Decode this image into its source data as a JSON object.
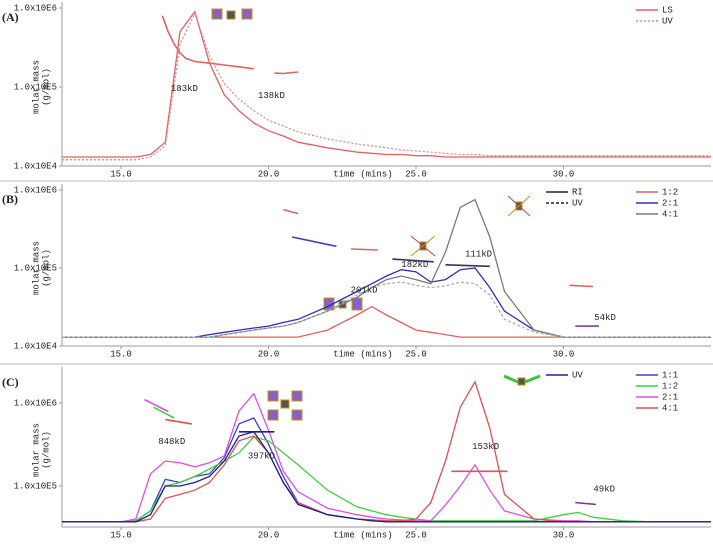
{
  "chart_data": [
    {
      "type": "line",
      "panel_label": "(A)",
      "ylabel": [
        "molar mass",
        "(g/mol)"
      ],
      "xlabel": "time (mins)",
      "log_y": true,
      "xlim": [
        13,
        35
      ],
      "ylim": [
        10000,
        1000000
      ],
      "xticks": [
        {
          "value": 15,
          "label": "15.0"
        },
        {
          "value": 20,
          "label": "20.0"
        },
        {
          "value": 25,
          "label": "25.0"
        },
        {
          "value": 30,
          "label": "30.0"
        }
      ],
      "yticks": [
        {
          "value": 10000,
          "label": "1.0x10E4"
        },
        {
          "value": 100000,
          "label": "1.0x10E5"
        },
        {
          "value": 1000000,
          "label": "1.0x10E6"
        }
      ],
      "legend": "top-right",
      "x": [
        13,
        14,
        15,
        15.5,
        16,
        16.5,
        17,
        17.5,
        18,
        18.5,
        19,
        19.5,
        20,
        20.5,
        21,
        22,
        23,
        23.5,
        24,
        24.5,
        25,
        25.5,
        26,
        26.5,
        27,
        27.5,
        28,
        29,
        30,
        30.5,
        31,
        32,
        33,
        35
      ],
      "series": [
        {
          "name": "LS",
          "color": "#e06262",
          "values": [
            13000,
            13000,
            13000,
            13000,
            14000,
            20000,
            500000,
            900000,
            200000,
            80000,
            50000,
            35000,
            28000,
            24000,
            20000,
            17000,
            15000,
            14500,
            14000,
            14000,
            13500,
            13500,
            13000,
            13000,
            13000,
            13000,
            13000,
            13000,
            13000,
            13000,
            13000,
            13000,
            13000,
            13000
          ]
        },
        {
          "name": "UV",
          "color": "#e88a8a",
          "dash": "2,2",
          "values": [
            12000,
            12000,
            12000,
            12000,
            13000,
            18000,
            350000,
            850000,
            250000,
            110000,
            70000,
            50000,
            38000,
            32000,
            27000,
            22000,
            19000,
            18000,
            17000,
            16000,
            15500,
            15000,
            14500,
            14000,
            14000,
            13500,
            13500,
            13500,
            13500,
            13500,
            13500,
            13500,
            13500,
            13500
          ]
        }
      ],
      "mass_segments": [
        {
          "color": "#e06262",
          "x": [
            16.4,
            16.6,
            16.8,
            17,
            17.2,
            17.5,
            18,
            18.5,
            19,
            19.5
          ],
          "values": [
            800000,
            500000,
            350000,
            270000,
            230000,
            210000,
            200000,
            190000,
            180000,
            170000
          ]
        },
        {
          "color": "#e06262",
          "x": [
            20.2,
            20.5,
            21
          ],
          "values": [
            150000,
            148000,
            155000
          ]
        }
      ],
      "annotations": [
        {
          "text": "183kD",
          "x": 17.15,
          "y": 95000
        },
        {
          "text": "138kD",
          "x": 20.1,
          "y": 78000
        }
      ]
    },
    {
      "type": "line",
      "panel_label": "(B)",
      "ylabel": [
        "molar mass",
        "(g/mol)"
      ],
      "xlabel": "time (mins)",
      "log_y": true,
      "xlim": [
        13,
        35
      ],
      "ylim": [
        10000,
        1000000
      ],
      "xticks": [
        {
          "value": 15,
          "label": "15.0"
        },
        {
          "value": 20,
          "label": "20.0"
        },
        {
          "value": 25,
          "label": "25.0"
        },
        {
          "value": 30,
          "label": "30.0"
        }
      ],
      "yticks": [
        {
          "value": 10000,
          "label": "1.0x10E4"
        },
        {
          "value": 100000,
          "label": "1.0x10E5"
        },
        {
          "value": 1000000,
          "label": "1.0x10E6"
        }
      ],
      "legend": "top-right",
      "detector_legend": [
        {
          "name": "RI",
          "color": "#222222"
        },
        {
          "name": "UV",
          "color": "#222222",
          "dash": "3,2"
        }
      ],
      "x": [
        13,
        14,
        15,
        15.5,
        16,
        16.5,
        17,
        17.5,
        18,
        18.5,
        19,
        19.5,
        20,
        20.5,
        21,
        22,
        23,
        23.5,
        24,
        24.5,
        25,
        25.5,
        26,
        26.5,
        27,
        27.5,
        28,
        29,
        30,
        30.5,
        31,
        32,
        33,
        35
      ],
      "series": [
        {
          "name": "1:2",
          "color": "#e06262",
          "values": [
            13000,
            13000,
            13000,
            13000,
            13000,
            13000,
            13000,
            13000,
            13000,
            13000,
            13000,
            13000,
            13000,
            13000,
            13000,
            16000,
            25000,
            32000,
            25000,
            20000,
            16000,
            15000,
            14000,
            13000,
            13000,
            13000,
            13000,
            13000,
            13000,
            13000,
            13000,
            13000,
            13000,
            13000
          ]
        },
        {
          "name": "2:1",
          "color": "#3030c0",
          "values": [
            13000,
            13000,
            13000,
            13000,
            13000,
            13000,
            13000,
            13000,
            14000,
            15000,
            16000,
            17000,
            18000,
            20000,
            22000,
            32000,
            50000,
            63000,
            79000,
            95000,
            89000,
            66000,
            71000,
            95000,
            100000,
            56000,
            28000,
            16000,
            13000,
            13000,
            13000,
            13000,
            13000,
            13000
          ]
        },
        {
          "name": "4:1",
          "color": "#7a7a7a",
          "values": [
            13000,
            13000,
            13000,
            13000,
            13000,
            13000,
            13000,
            13000,
            13000,
            14000,
            15000,
            16000,
            17000,
            18000,
            20000,
            28000,
            42000,
            56000,
            71000,
            79000,
            71000,
            63000,
            160000,
            600000,
            750000,
            250000,
            50000,
            16000,
            13000,
            13000,
            13000,
            13000,
            13000,
            13000
          ]
        },
        {
          "color": "#b0b0b0",
          "dash": "3,2",
          "values": [
            13000,
            13000,
            13000,
            13000,
            13000,
            13000,
            13000,
            13000,
            13000,
            14000,
            15000,
            16000,
            17000,
            18000,
            20000,
            28000,
            45000,
            56000,
            63000,
            66000,
            60000,
            56000,
            59000,
            66000,
            63000,
            45000,
            22000,
            15000,
            13000,
            13000,
            13000,
            13000,
            13000,
            13000
          ]
        }
      ],
      "mass_segments": [
        {
          "color": "#e06262",
          "x": [
            20.5,
            21
          ],
          "values": [
            560000,
            500000
          ]
        },
        {
          "color": "#4040b0",
          "x": [
            20.8,
            22.3
          ],
          "values": [
            250000,
            190000
          ]
        },
        {
          "color": "#e06262",
          "x": [
            22.8,
            23.7
          ],
          "values": [
            175000,
            170000
          ]
        },
        {
          "color": "#333366",
          "x": [
            24.2,
            25.6
          ],
          "values": [
            130000,
            120000
          ]
        },
        {
          "color": "#333366",
          "x": [
            26,
            27.5
          ],
          "values": [
            110000,
            105000
          ]
        },
        {
          "color": "#e06262",
          "x": [
            30.2,
            31
          ],
          "values": [
            60000,
            58000
          ]
        },
        {
          "color": "#8040a0",
          "x": [
            30.4,
            31.2
          ],
          "values": [
            18000,
            18000
          ]
        }
      ],
      "annotations": [
        {
          "text": "201kD",
          "x": 23.24,
          "y": 52000
        },
        {
          "text": "182kD",
          "x": 24.96,
          "y": 110000
        },
        {
          "text": "111kD",
          "x": 27.12,
          "y": 150000
        },
        {
          "text": "54kD",
          "x": 31.41,
          "y": 23000
        }
      ]
    },
    {
      "type": "line",
      "panel_label": "(C)",
      "ylabel": [
        "molar mass",
        "(g/mol)"
      ],
      "xlabel": "time (mins)",
      "log_y": true,
      "xlim": [
        13,
        35
      ],
      "ylim": [
        32000,
        2300000
      ],
      "xticks": [
        {
          "value": 15,
          "label": "15.0"
        },
        {
          "value": 20,
          "label": "20.0"
        },
        {
          "value": 25,
          "label": "25.0"
        },
        {
          "value": 30,
          "label": "30.0"
        }
      ],
      "yticks": [
        {
          "value": 100000,
          "label": "1.0x10E5"
        },
        {
          "value": 1000000,
          "label": "1.0x10E6"
        }
      ],
      "legend": "top-right",
      "detector_legend": [
        {
          "name": "UV",
          "color": "#202090"
        }
      ],
      "x": [
        13,
        14,
        15,
        15.5,
        16,
        16.5,
        17,
        17.5,
        18,
        18.5,
        19,
        19.5,
        20,
        20.5,
        21,
        22,
        23,
        23.5,
        24,
        24.5,
        25,
        25.5,
        26,
        26.5,
        27,
        27.5,
        28,
        29,
        30,
        30.5,
        31,
        32,
        33,
        35
      ],
      "series": [
        {
          "name": "1:1",
          "color": "#4040d0",
          "values": [
            37000,
            37000,
            37000,
            38000,
            50000,
            120000,
            110000,
            130000,
            140000,
            220000,
            560000,
            660000,
            320000,
            130000,
            63000,
            45000,
            40000,
            39000,
            38000,
            37000,
            37000,
            37000,
            37000,
            37000,
            37000,
            37000,
            37000,
            37000,
            37000,
            37000,
            37000,
            37000,
            37000,
            37000
          ]
        },
        {
          "name": "1:2",
          "color": "#40d040",
          "values": [
            37000,
            37000,
            37000,
            38000,
            50000,
            100000,
            110000,
            130000,
            160000,
            200000,
            250000,
            390000,
            350000,
            250000,
            180000,
            89000,
            56000,
            50000,
            45000,
            42000,
            40000,
            38000,
            38000,
            38000,
            38000,
            38000,
            38000,
            38000,
            45000,
            48000,
            42000,
            38000,
            37000,
            37000
          ]
        },
        {
          "name": "2:1",
          "color": "#e050e0",
          "values": [
            37000,
            37000,
            37000,
            40000,
            140000,
            200000,
            190000,
            170000,
            190000,
            230000,
            800000,
            1300000,
            470000,
            150000,
            85000,
            54000,
            45000,
            42000,
            40000,
            39000,
            38000,
            38000,
            59000,
            100000,
            180000,
            89000,
            50000,
            40000,
            38000,
            38000,
            37000,
            37000,
            37000,
            37000
          ]
        },
        {
          "name": "4:1",
          "color": "#e05050",
          "values": [
            37000,
            37000,
            37000,
            37000,
            40000,
            71000,
            79000,
            89000,
            110000,
            180000,
            350000,
            400000,
            250000,
            110000,
            63000,
            45000,
            40000,
            39000,
            38000,
            38000,
            40000,
            63000,
            200000,
            890000,
            1800000,
            500000,
            79000,
            40000,
            37000,
            37000,
            37000,
            37000,
            37000,
            37000
          ]
        },
        {
          "color": "#202090",
          "values": [
            37000,
            37000,
            37000,
            37000,
            45000,
            100000,
            100000,
            110000,
            130000,
            200000,
            400000,
            450000,
            250000,
            110000,
            60000,
            45000,
            40000,
            38000,
            37000,
            37000,
            37000,
            37000,
            37000,
            37000,
            37000,
            37000,
            37000,
            37000,
            37000,
            37000,
            37000,
            37000,
            37000,
            37000
          ]
        }
      ],
      "mass_segments": [
        {
          "color": "#e050e0",
          "x": [
            15.8,
            16.6
          ],
          "values": [
            1100000,
            790000
          ]
        },
        {
          "color": "#40d040",
          "x": [
            16.1,
            16.8
          ],
          "values": [
            890000,
            660000
          ]
        },
        {
          "color": "#e05050",
          "x": [
            16.5,
            17.4
          ],
          "values": [
            630000,
            560000
          ]
        },
        {
          "color": "#202090",
          "x": [
            19,
            20.2
          ],
          "values": [
            450000,
            450000
          ]
        },
        {
          "color": "#e05050",
          "x": [
            26.2,
            28.1
          ],
          "values": [
            150000,
            150000
          ]
        },
        {
          "color": "#8040a0",
          "x": [
            30.4,
            31.1
          ],
          "values": [
            63000,
            60000
          ]
        }
      ],
      "annotations": [
        {
          "text": "848kD",
          "x": 16.72,
          "y": 340000
        },
        {
          "text": "397kD",
          "x": 19.76,
          "y": 230000
        },
        {
          "text": "153kD",
          "x": 27.36,
          "y": 300000
        },
        {
          "text": "49kD",
          "x": 31.38,
          "y": 91000
        }
      ]
    }
  ]
}
